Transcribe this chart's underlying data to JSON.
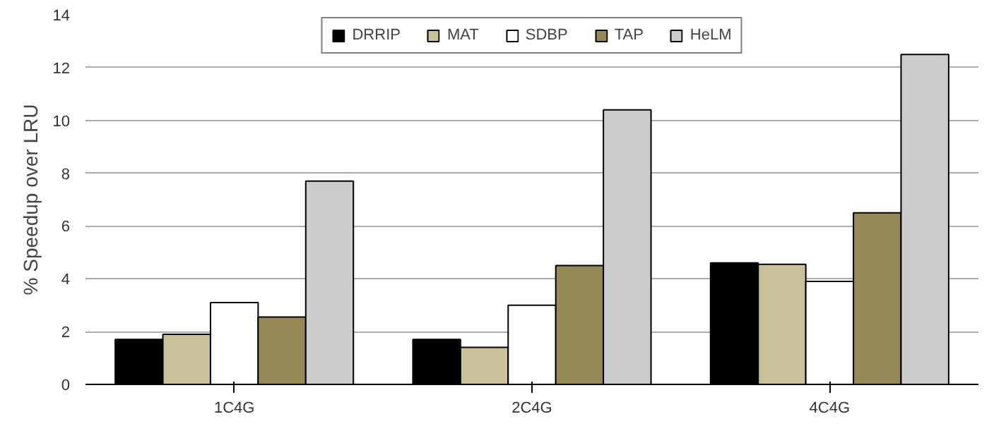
{
  "chart_data": {
    "type": "bar",
    "ylabel": "% Speedup over LRU",
    "categories": [
      "1C4G",
      "2C4G",
      "4C4G"
    ],
    "series": [
      {
        "name": "DRRIP",
        "color": "#000000",
        "values": [
          1.7,
          1.7,
          4.6
        ]
      },
      {
        "name": "MAT",
        "color": "#c9c19a",
        "values": [
          1.9,
          1.4,
          4.55
        ]
      },
      {
        "name": "SDBP",
        "color": "#ffffff",
        "values": [
          3.1,
          3.0,
          3.9
        ]
      },
      {
        "name": "TAP",
        "color": "#958a55",
        "values": [
          2.55,
          4.5,
          6.5
        ]
      },
      {
        "name": "HeLM",
        "color": "#cccccc",
        "values": [
          7.7,
          10.4,
          12.5
        ]
      }
    ],
    "ylim": [
      0,
      14
    ],
    "yticks": [
      0,
      2,
      4,
      6,
      8,
      10,
      12,
      14
    ],
    "grid": "y",
    "legend": "top"
  }
}
